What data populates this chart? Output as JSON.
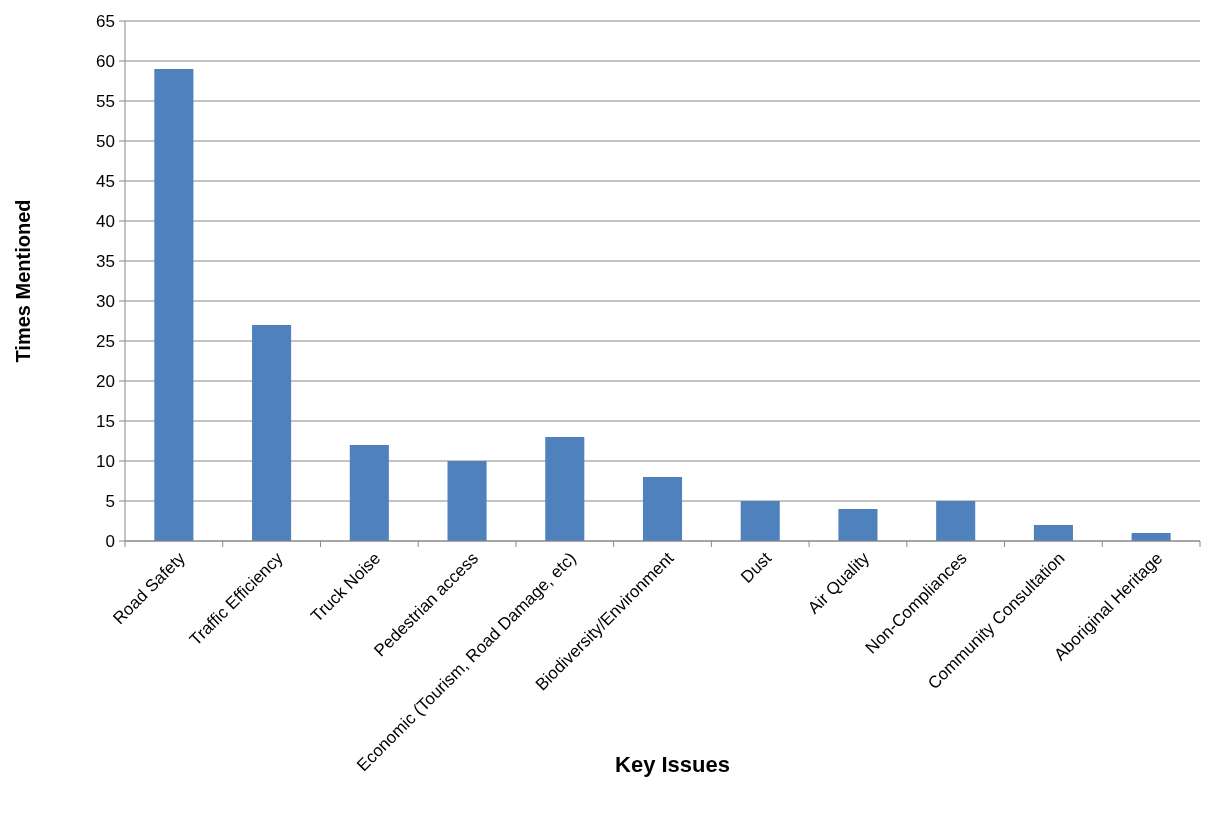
{
  "chart_data": {
    "type": "bar",
    "xlabel": "Key Issues",
    "ylabel": "Times Mentioned",
    "categories": [
      "Road Safety",
      "Traffic Efficiency",
      "Truck Noise",
      "Pedestrian access",
      "Economic (Tourism, Road Damage, etc)",
      "Biodiversity/Environment",
      "Dust",
      "Air Quality",
      "Non-Compliances",
      "Community Consultation",
      "Aboriginal Heritage"
    ],
    "values": [
      59,
      27,
      12,
      10,
      13,
      8,
      5,
      4,
      5,
      2,
      1
    ],
    "color": "#4f81bd",
    "ylim": [
      0,
      65
    ],
    "yticks": [
      0,
      5,
      10,
      15,
      20,
      25,
      30,
      35,
      40,
      45,
      50,
      55,
      60,
      65
    ],
    "grid": "y"
  }
}
